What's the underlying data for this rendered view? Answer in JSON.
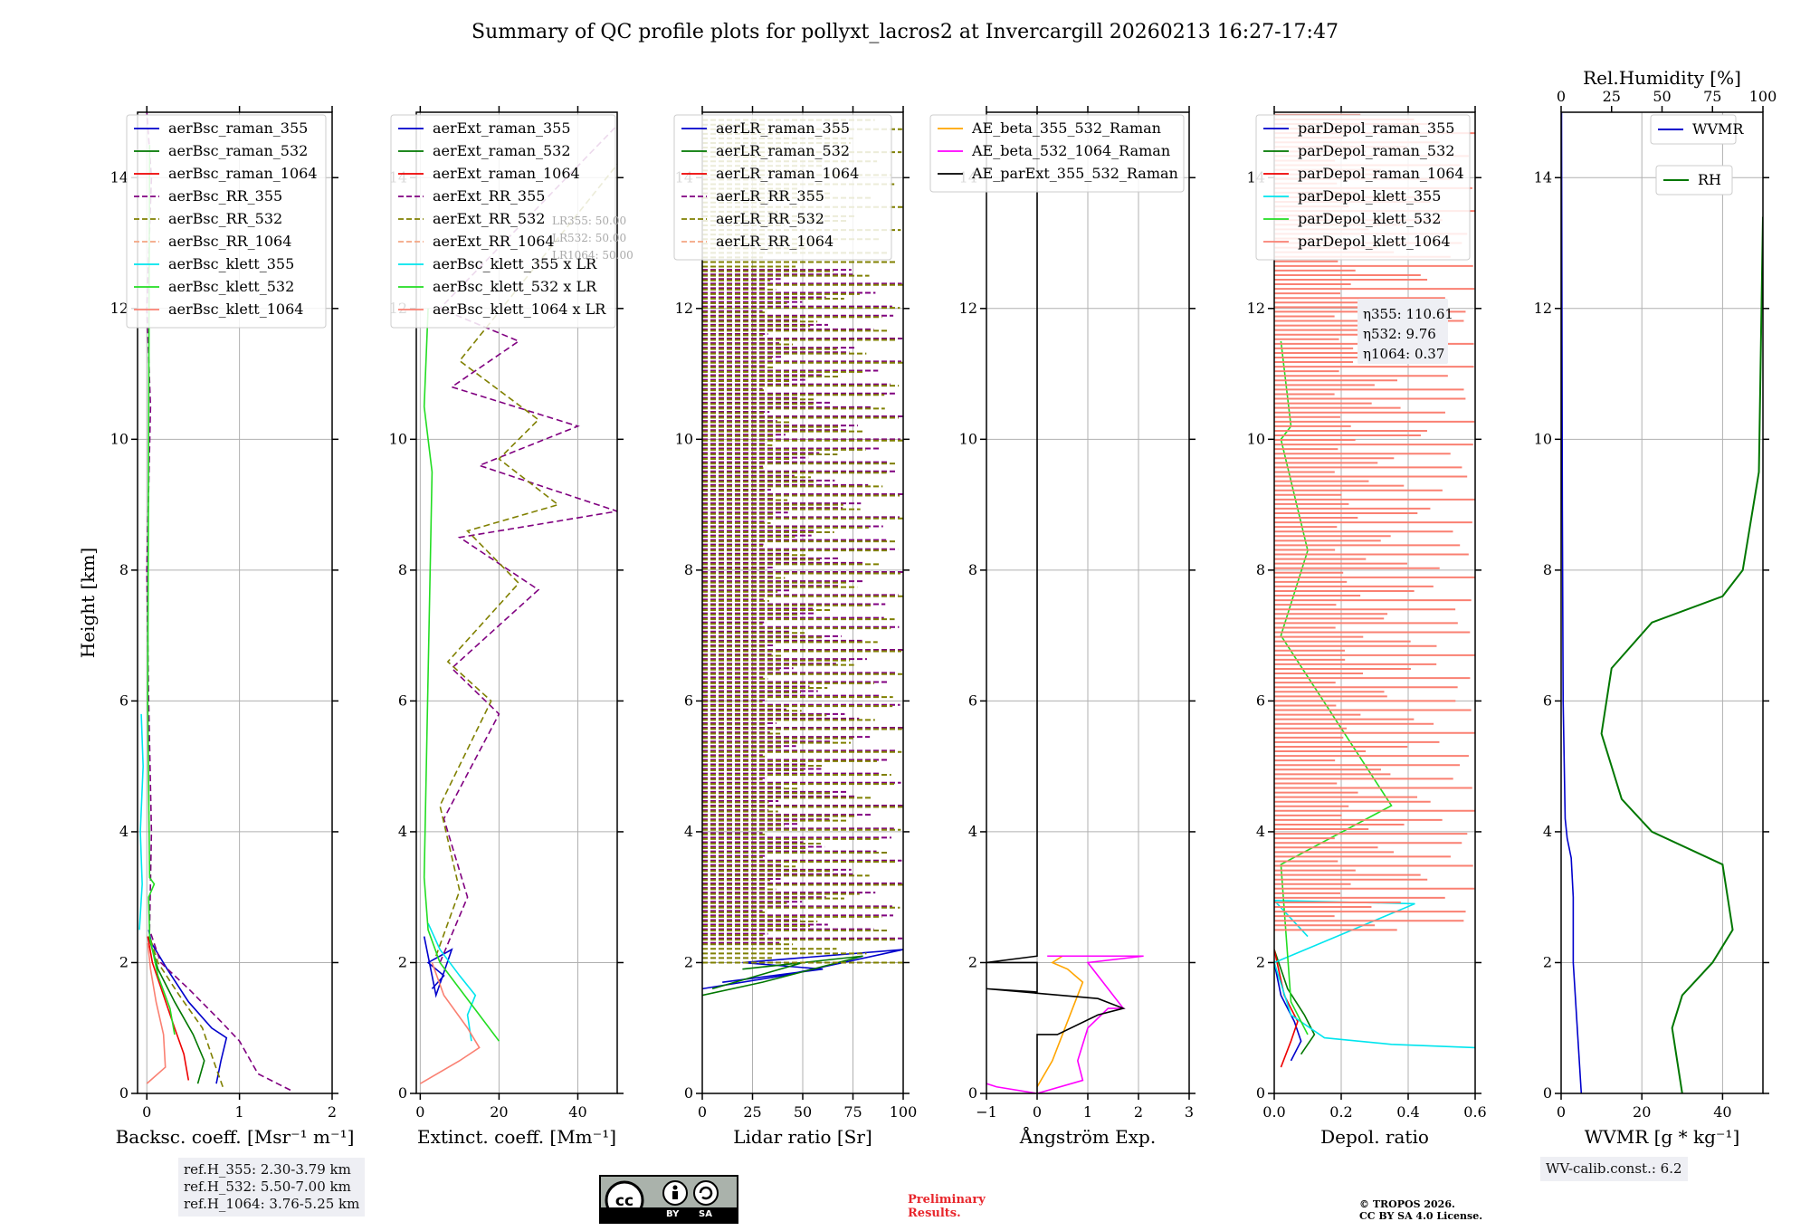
{
  "title": "Summary of QC profile plots for pollyxt_lacros2 at Invercargill 20260213 16:27-17:47",
  "colors": {
    "raman355": "#0000cc",
    "raman532": "#007700",
    "raman1064": "#ee0000",
    "rr355": "#800080",
    "rr532": "#808000",
    "rr1064": "#f4a582",
    "klett355": "#00e5ee",
    "klett532": "#22dd22",
    "klett1064": "#fa8072",
    "aeBeta": "#ffa500",
    "aeBeta532": "#ff00ff",
    "aeExt": "#000000",
    "grid": "#b0b0b0",
    "boxBg": "#eeeff4"
  },
  "chart_data": [
    {
      "type": "line",
      "panel": "backscatter",
      "xlabel": "Backsc. coeff. [Msr⁻¹ m⁻¹]",
      "ylabel": "Height [km]",
      "xlim": [
        -0.1,
        2
      ],
      "ylim": [
        0,
        15
      ],
      "xticks": [
        0,
        1,
        2
      ],
      "xticklabels": [
        "0",
        "1",
        "2"
      ],
      "yticks": [
        0,
        2,
        4,
        6,
        8,
        10,
        12,
        14
      ],
      "legend": [
        "aerBsc_raman_355",
        "aerBsc_raman_532",
        "aerBsc_raman_1064",
        "aerBsc_RR_355",
        "aerBsc_RR_532",
        "aerBsc_RR_1064",
        "aerBsc_klett_355",
        "aerBsc_klett_532",
        "aerBsc_klett_1064"
      ],
      "series": [
        {
          "name": "aerBsc_raman_355",
          "color": "raman355",
          "x": [
            0.75,
            0.8,
            0.86,
            0.7,
            0.45,
            0.22,
            0.05,
            0.02
          ],
          "y": [
            0.15,
            0.5,
            0.85,
            1.0,
            1.4,
            1.9,
            2.3,
            2.5
          ]
        },
        {
          "name": "aerBsc_raman_532",
          "color": "raman532",
          "x": [
            0.55,
            0.62,
            0.5,
            0.3,
            0.12,
            0.02
          ],
          "y": [
            0.15,
            0.5,
            0.9,
            1.4,
            1.9,
            2.4
          ]
        },
        {
          "name": "aerBsc_raman_1064",
          "color": "raman1064",
          "x": [
            0.45,
            0.4,
            0.3,
            0.18,
            0.06,
            0.01
          ],
          "y": [
            0.2,
            0.6,
            1.0,
            1.5,
            2.0,
            2.4
          ]
        },
        {
          "name": "aerBsc_RR_355",
          "color": "rr355",
          "dash": true,
          "x": [
            1.55,
            1.2,
            1.0,
            0.8,
            0.45,
            0.15,
            0.03,
            0.05,
            0.02,
            0.0,
            0.04,
            0.0,
            0.05,
            0.0
          ],
          "y": [
            0.05,
            0.3,
            0.8,
            1.1,
            1.6,
            2.0,
            2.5,
            4.0,
            6.0,
            8.0,
            10.5,
            12.0,
            14.0,
            15.0
          ]
        },
        {
          "name": "aerBsc_RR_532",
          "color": "rr532",
          "dash": true,
          "x": [
            0.82,
            0.72,
            0.6,
            0.35,
            0.12,
            0.03
          ],
          "y": [
            0.1,
            0.5,
            1.0,
            1.5,
            2.0,
            2.4
          ]
        },
        {
          "name": "aerBsc_klett_355",
          "color": "klett355",
          "x": [
            -0.08,
            -0.05,
            -0.07,
            -0.04,
            -0.06
          ],
          "y": [
            2.5,
            3.2,
            4.0,
            5.0,
            5.8
          ]
        },
        {
          "name": "aerBsc_klett_532",
          "color": "klett532",
          "x": [
            0.3,
            0.25,
            0.12,
            0.03,
            0.02,
            0.08,
            0.03,
            0.01,
            0.03
          ],
          "y": [
            0.9,
            1.3,
            1.8,
            2.4,
            3.0,
            3.2,
            3.3,
            6.0,
            14.5
          ]
        },
        {
          "name": "aerBsc_klett_1064",
          "color": "klett1064",
          "x": [
            0.0,
            0.2,
            0.18,
            0.1,
            0.04,
            0.01
          ],
          "y": [
            0.15,
            0.4,
            0.9,
            1.4,
            1.9,
            2.3
          ]
        }
      ]
    },
    {
      "type": "line",
      "panel": "extinction",
      "xlabel": "Extinct. coeff. [Mm⁻¹]",
      "xlim": [
        -1,
        50
      ],
      "ylim": [
        0,
        15
      ],
      "xticks": [
        0,
        20,
        40
      ],
      "xticklabels": [
        "0",
        "20",
        "40"
      ],
      "yticks": [
        0,
        2,
        4,
        6,
        8,
        10,
        12,
        14
      ],
      "legend": [
        "aerExt_raman_355",
        "aerExt_raman_532",
        "aerExt_raman_1064",
        "aerExt_RR_355",
        "aerExt_RR_532",
        "aerExt_RR_1064",
        "aerBsc_klett_355 x LR",
        "aerBsc_klett_532 x LR",
        "aerBsc_klett_1064 x LR"
      ],
      "lr_box": [
        "LR355: 50.00",
        "LR532: 50.00",
        "LR1064: 50.00"
      ],
      "series": [
        {
          "name": "aerExt_raman_355",
          "color": "raman355",
          "x": [
            3,
            6,
            2,
            8,
            4,
            1
          ],
          "y": [
            1.6,
            1.8,
            2.0,
            2.2,
            1.5,
            2.4
          ]
        },
        {
          "name": "aerExt_RR_355",
          "color": "rr355",
          "dash": true,
          "x": [
            5,
            12,
            6,
            20,
            8,
            30,
            10,
            50,
            15,
            40,
            8,
            25,
            5,
            50
          ],
          "y": [
            2.0,
            3.0,
            4.2,
            5.8,
            6.5,
            7.7,
            8.5,
            8.9,
            9.6,
            10.2,
            10.8,
            11.5,
            12.0,
            14.8
          ]
        },
        {
          "name": "aerExt_RR_532",
          "color": "rr532",
          "dash": true,
          "x": [
            4,
            10,
            5,
            18,
            7,
            25,
            12,
            35,
            20,
            30,
            10,
            50
          ],
          "y": [
            2.1,
            3.1,
            4.4,
            6.0,
            6.6,
            7.8,
            8.6,
            9.0,
            9.7,
            10.3,
            11.2,
            14.2
          ]
        },
        {
          "name": "aerBsc_klett_355 x LR",
          "color": "klett355",
          "x": [
            13,
            12,
            14,
            10,
            5,
            2
          ],
          "y": [
            0.8,
            1.2,
            1.5,
            1.8,
            2.2,
            2.6
          ]
        },
        {
          "name": "aerBsc_klett_532 x LR",
          "color": "klett532",
          "x": [
            20,
            15,
            10,
            5,
            2,
            1,
            3,
            1,
            2
          ],
          "y": [
            0.8,
            1.2,
            1.6,
            2.0,
            2.5,
            3.3,
            9.5,
            10.5,
            12.0
          ]
        },
        {
          "name": "aerBsc_klett_1064 x LR",
          "color": "klett1064",
          "x": [
            0,
            10,
            15,
            12,
            6,
            3
          ],
          "y": [
            0.15,
            0.5,
            0.7,
            1.0,
            1.5,
            2.0
          ]
        }
      ]
    },
    {
      "type": "line",
      "panel": "lidar ratio",
      "xlabel": "Lidar ratio [Sr]",
      "xlim": [
        0,
        100
      ],
      "ylim": [
        0,
        15
      ],
      "xticks": [
        0,
        25,
        50,
        75,
        100
      ],
      "xticklabels": [
        "0",
        "25",
        "50",
        "75",
        "100"
      ],
      "yticks": [
        0,
        2,
        4,
        6,
        8,
        10,
        12,
        14
      ],
      "legend": [
        "aerLR_raman_355",
        "aerLR_raman_532",
        "aerLR_raman_1064",
        "aerLR_RR_355",
        "aerLR_RR_532",
        "aerLR_RR_1064"
      ],
      "series": [
        {
          "name": "aerLR_raman_355",
          "color": "raman355",
          "x": [
            0,
            40,
            100,
            20,
            60,
            10
          ],
          "y": [
            1.6,
            1.8,
            2.2,
            2.0,
            1.9,
            1.7
          ]
        },
        {
          "name": "aerLR_raman_532",
          "color": "raman532",
          "x": [
            0,
            30,
            80,
            20,
            50,
            5
          ],
          "y": [
            1.5,
            1.7,
            2.1,
            1.9,
            2.0,
            1.6
          ]
        },
        {
          "name": "aerLR_RR_355",
          "color": "rr355",
          "dash": true,
          "hatch": [
            2.3,
            12.6
          ],
          "x": [
            0,
            100
          ]
        },
        {
          "name": "aerLR_RR_532",
          "color": "rr532",
          "dash": true,
          "hatch": [
            2.0,
            14.9
          ],
          "x": [
            0,
            100
          ]
        }
      ]
    },
    {
      "type": "line",
      "panel": "angstrom",
      "xlabel": "Ångström Exp.",
      "xlim": [
        -1,
        3
      ],
      "ylim": [
        0,
        15
      ],
      "xticks": [
        -1,
        0,
        1,
        2,
        3
      ],
      "xticklabels": [
        "−1",
        "0",
        "1",
        "2",
        "3"
      ],
      "yticks": [
        0,
        2,
        4,
        6,
        8,
        10,
        12,
        14
      ],
      "legend": [
        "AE_beta_355_532_Raman",
        "AE_beta_532_1064_Raman",
        "AE_parExt_355_532_Raman"
      ],
      "series": [
        {
          "name": "AE_beta_355_532_Raman",
          "color": "aeBeta",
          "x": [
            0.0,
            0.3,
            0.5,
            0.7,
            0.9,
            0.6,
            0.3,
            0.5
          ],
          "y": [
            0.1,
            0.5,
            0.9,
            1.3,
            1.7,
            1.9,
            2.0,
            2.1
          ]
        },
        {
          "name": "AE_beta_532_1064_Raman",
          "color": "aeBeta532",
          "x": [
            -1.0,
            -0.8,
            0.0,
            0.9,
            0.8,
            1.0,
            1.4,
            1.7,
            1.4,
            1.0,
            2.1,
            0.2
          ],
          "y": [
            0.15,
            0.1,
            0.0,
            0.2,
            0.5,
            1.0,
            1.3,
            1.3,
            1.6,
            2.0,
            2.1,
            2.1
          ]
        },
        {
          "name": "AE_parExt_355_532_Raman",
          "color": "aeExt",
          "x": [
            0.0,
            0.0,
            0.4,
            1.2,
            1.7,
            1.2,
            -1.0,
            0.0,
            0.0,
            -1.0,
            0.0,
            0.0
          ],
          "y": [
            0.0,
            0.9,
            0.9,
            1.2,
            1.3,
            1.45,
            1.6,
            1.55,
            2.0,
            2.0,
            2.1,
            15.0
          ]
        }
      ]
    },
    {
      "type": "line",
      "panel": "depolarization",
      "xlabel": "Depol. ratio",
      "xlim": [
        0,
        0.6
      ],
      "ylim": [
        0,
        15
      ],
      "xticks": [
        0,
        0.2,
        0.4,
        0.6
      ],
      "xticklabels": [
        "0.0",
        "0.2",
        "0.4",
        "0.6"
      ],
      "yticks": [
        0,
        2,
        4,
        6,
        8,
        10,
        12,
        14
      ],
      "legend": [
        "parDepol_raman_355",
        "parDepol_raman_532",
        "parDepol_raman_1064",
        "parDepol_klett_355",
        "parDepol_klett_532",
        "parDepol_klett_1064"
      ],
      "eta_box": [
        "η355: 110.61",
        "η532: 9.76",
        "η1064: 0.37"
      ],
      "series": [
        {
          "name": "parDepol_raman_355",
          "color": "raman355",
          "x": [
            0.05,
            0.08,
            0.06,
            0.02,
            0.0
          ],
          "y": [
            0.5,
            0.8,
            1.1,
            1.5,
            2.0
          ]
        },
        {
          "name": "parDepol_raman_532",
          "color": "raman532",
          "x": [
            0.08,
            0.12,
            0.09,
            0.04,
            0.0
          ],
          "y": [
            0.6,
            0.9,
            1.2,
            1.6,
            2.2
          ]
        },
        {
          "name": "parDepol_raman_1064",
          "color": "raman1064",
          "x": [
            0.02,
            0.05,
            0.07,
            0.03,
            0.0
          ],
          "y": [
            0.4,
            0.8,
            1.1,
            1.5,
            2.2
          ]
        },
        {
          "name": "parDepol_klett_355",
          "color": "klett355",
          "x": [
            0.6,
            0.35,
            0.15,
            0.05,
            0.0,
            0.42,
            0.0,
            0.1
          ],
          "y": [
            0.7,
            0.75,
            0.85,
            1.2,
            2.0,
            2.9,
            2.95,
            2.4
          ]
        },
        {
          "name": "parDepol_klett_532",
          "color": "klett532",
          "x": [
            0.1,
            0.05,
            0.02,
            0.35,
            0.02,
            0.1,
            0.02,
            0.05,
            0.02
          ],
          "y": [
            0.9,
            1.4,
            3.5,
            4.4,
            7.0,
            8.3,
            10.0,
            10.2,
            11.5
          ]
        },
        {
          "name": "parDepol_klett_1064",
          "color": "klett1064",
          "hatch": [
            2.5,
            15.0
          ],
          "x": [
            0,
            0.6
          ]
        }
      ]
    },
    {
      "type": "line",
      "panel": "water vapor",
      "xlabel": "WVMR [g * kg⁻¹]",
      "x2label": "Rel.Humidity [%]",
      "xlim": [
        0,
        50
      ],
      "x2lim": [
        0,
        100
      ],
      "ylim": [
        0,
        15
      ],
      "xticks": [
        0,
        20,
        40
      ],
      "xticklabels": [
        "0",
        "20",
        "40"
      ],
      "x2ticks": [
        0,
        25,
        50,
        75,
        100
      ],
      "x2ticklabels": [
        "0",
        "25",
        "50",
        "75",
        "100"
      ],
      "yticks": [
        0,
        2,
        4,
        6,
        8,
        10,
        12,
        14
      ],
      "legend": [
        "WVMR",
        "RH"
      ],
      "series": [
        {
          "name": "WVMR",
          "color": "raman355",
          "x": [
            5,
            4,
            3,
            3,
            2.5,
            1.5,
            1,
            0.5,
            0.3,
            0.2,
            0.1
          ],
          "y": [
            0.0,
            1.0,
            2.0,
            3.0,
            3.6,
            3.9,
            4.2,
            6.0,
            9.0,
            12.0,
            15.0
          ]
        },
        {
          "name": "RH",
          "color": "raman532",
          "axis": "x2",
          "x": [
            60,
            55,
            60,
            75,
            85,
            80,
            45,
            30,
            20,
            25,
            45,
            80,
            90,
            98,
            100
          ],
          "y": [
            0.0,
            1.0,
            1.5,
            2.0,
            2.5,
            3.5,
            4.0,
            4.5,
            5.5,
            6.5,
            7.2,
            7.6,
            8.0,
            9.5,
            13.4
          ]
        }
      ]
    }
  ],
  "notes": {
    "ref_h": [
      "ref.H_355: 2.30-3.79 km",
      "ref.H_532: 5.50-7.00 km",
      "ref.H_1064: 3.76-5.25 km"
    ],
    "wv_calib": "WV-calib.const.: 6.2",
    "license_badge": [
      "BY",
      "SA"
    ],
    "preliminary": [
      "Preliminary",
      "Results."
    ],
    "copyright": [
      "© TROPOS 2026.",
      "CC BY SA 4.0 License."
    ]
  }
}
